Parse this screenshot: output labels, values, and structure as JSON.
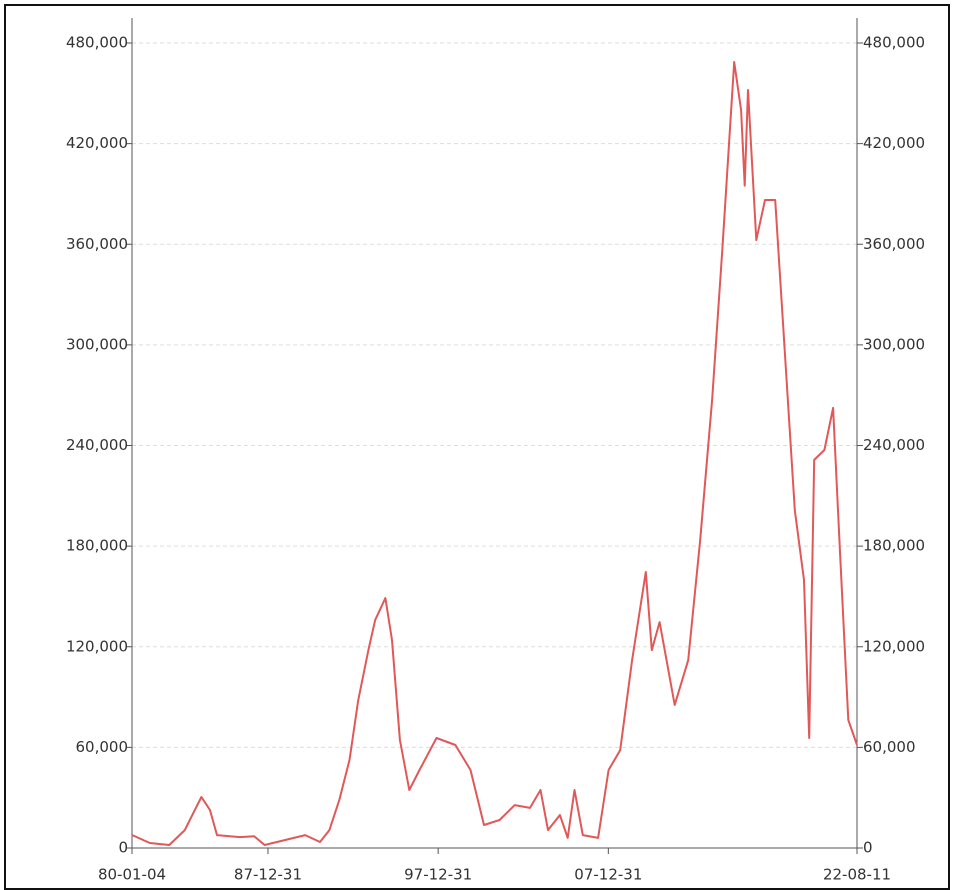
{
  "chart_data": {
    "type": "line",
    "x": [
      "80-01-04",
      "81-01-20",
      "82-03-15",
      "83-02-10",
      "83-09-12",
      "84-02-01",
      "84-08-05",
      "85-01-02",
      "86-05-06",
      "87-03-10",
      "87-10-20",
      "89-01-05",
      "90-03-10",
      "91-01-20",
      "91-08-10",
      "92-03-10",
      "92-10-15",
      "93-04-20",
      "93-11-25",
      "94-04-20",
      "94-11-25",
      "95-04-15",
      "95-10-01",
      "96-04-20",
      "96-11-25",
      "97-11-25",
      "99-01-05",
      "99-11-25",
      "00-09-10",
      "01-08-10",
      "02-07-01",
      "03-05-25",
      "04-01-05",
      "04-06-15",
      "05-02-25",
      "05-08-10",
      "06-01-05",
      "06-07-01",
      "07-05-25",
      "08-01-05",
      "08-09-10",
      "09-05-25",
      "10-03-15",
      "10-07-20",
      "11-01-05",
      "11-11-25",
      "12-09-10",
      "13-05-25",
      "14-02-05",
      "14-09-10",
      "15-05-25",
      "15-10-20",
      "16-01-05",
      "16-03-15",
      "16-09-10",
      "17-03-15",
      "17-10-20",
      "18-04-01",
      "18-12-15",
      "19-07-01",
      "19-10-20",
      "20-02-05",
      "20-09-10",
      "21-03-15",
      "21-08-10",
      "22-02-05",
      "22-08-11"
    ],
    "series": [
      {
        "name": "value",
        "color": "#e05858",
        "values": [
          7750,
          3000,
          1800,
          10700,
          22600,
          30400,
          22600,
          7700,
          6500,
          7000,
          1800,
          4800,
          7700,
          3600,
          10700,
          28600,
          52500,
          88000,
          118000,
          136000,
          149000,
          124000,
          64400,
          34600,
          46500,
          65600,
          61400,
          46500,
          13700,
          16700,
          25600,
          23900,
          34600,
          10700,
          19700,
          6000,
          34600,
          7700,
          6000,
          46500,
          58400,
          112000,
          164600,
          118000,
          134700,
          85300,
          112000,
          183700,
          267000,
          356600,
          468700,
          440000,
          395000,
          452000,
          362500,
          386400,
          386400,
          314800,
          201500,
          159800,
          65600,
          231400,
          237300,
          262400,
          177700,
          76300,
          61400
        ]
      }
    ],
    "xlim": [
      "80-01-04",
      "22-08-11"
    ],
    "xticks": [
      "80-01-04",
      "87-12-31",
      "97-12-31",
      "07-12-31",
      "22-08-11"
    ],
    "ylim": [
      0,
      480000
    ],
    "yticks": [
      0,
      {
        "value": 60000,
        "label": "60,000"
      },
      {
        "value": 120000,
        "label": "120,000"
      },
      {
        "value": 180000,
        "label": "180,000"
      },
      {
        "value": 240000,
        "label": "240,000"
      },
      {
        "value": 300000,
        "label": "300,000"
      },
      {
        "value": 360000,
        "label": "360,000"
      },
      {
        "value": 420000,
        "label": "420,000"
      },
      {
        "value": 480000,
        "label": "480,000"
      }
    ],
    "y2lim": [
      0,
      480000
    ],
    "y2ticks": [
      0,
      {
        "value": 60000,
        "label": "60,000"
      },
      {
        "value": 120000,
        "label": "120,000"
      },
      {
        "value": 180000,
        "label": "180,000"
      },
      {
        "value": 240000,
        "label": "240,000"
      },
      {
        "value": 300000,
        "label": "300,000"
      },
      {
        "value": 360000,
        "label": "360,000"
      },
      {
        "value": 420000,
        "label": "420,000"
      },
      {
        "value": 480000,
        "label": "480,000"
      }
    ],
    "grid": true
  }
}
